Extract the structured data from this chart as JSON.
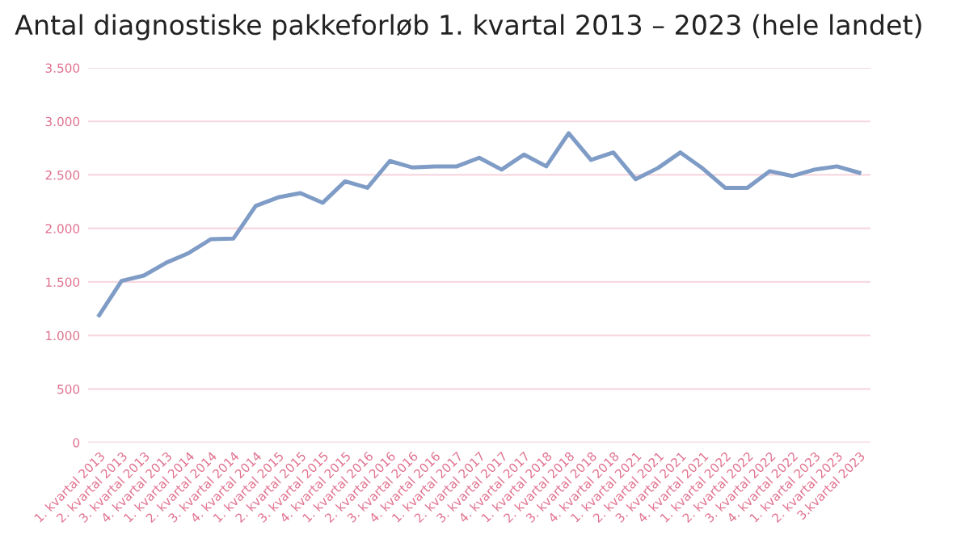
{
  "chart_data": {
    "type": "line",
    "title": "Antal diagnostiske pakkeforløb 1. kvartal 2013 – 2023 (hele landet)",
    "categories": [
      "1. kvartal 2013",
      "2. kvartal 2013",
      "3. kvartal 2013",
      "4. kvartal 2013",
      "1. kvartal 2014",
      "2. kvartal 2014",
      "3. kvartal 2014",
      "4. kvartal 2014",
      "1. kvartal 2015",
      "2. kvartal 2015",
      "3. kvartal 2015",
      "4. kvartal 2015",
      "1. kvartal 2016",
      "2. kvartal 2016",
      "3. kvartal 2016",
      "4. kvartal 2016",
      "1. kvartal 2017",
      "2. kvartal 2017",
      "3. kvartal 2017",
      "4. kvartal 2017",
      "1. kvartal 2018",
      "2. kvartal 2018",
      "3. kvartal 2018",
      "4. kvartal 2018",
      "1. kvartal 2021",
      "2. kvartal 2021",
      "3. kvartal 2021",
      "4. kvartal 2021",
      "1. kvartal 2022",
      "2. kvartal 2022",
      "3. kvartal 2022",
      "4. kvartal 2022",
      "1. kvartal 2023",
      "2. kvartal 2023",
      "3.kvartal 2023"
    ],
    "series": [
      {
        "color": "#7f9cc6",
        "values": [
          1190,
          1510,
          1560,
          1680,
          1770,
          1900,
          1905,
          2210,
          2290,
          2330,
          2240,
          2440,
          2380,
          2630,
          2570,
          2580,
          2580,
          2660,
          2550,
          2690,
          2580,
          2890,
          2640,
          2710,
          2460,
          2565,
          2710,
          2560,
          2380,
          2380,
          2535,
          2490,
          2550,
          2580,
          2520
        ]
      }
    ],
    "ylim": [
      0,
      3500
    ],
    "yticks": [
      0,
      {
        "value": 500,
        "label": "500"
      },
      {
        "value": 1000,
        "label": "1.000"
      },
      {
        "value": 1500,
        "label": "1.500"
      },
      {
        "value": 2000,
        "label": "2.000"
      },
      {
        "value": 2500,
        "label": "2.500"
      },
      {
        "value": 3000,
        "label": "3.000"
      },
      {
        "value": 3500,
        "label": "3.500"
      }
    ],
    "grid": "y",
    "legend": false,
    "marker": "none",
    "line_style": "solid"
  }
}
